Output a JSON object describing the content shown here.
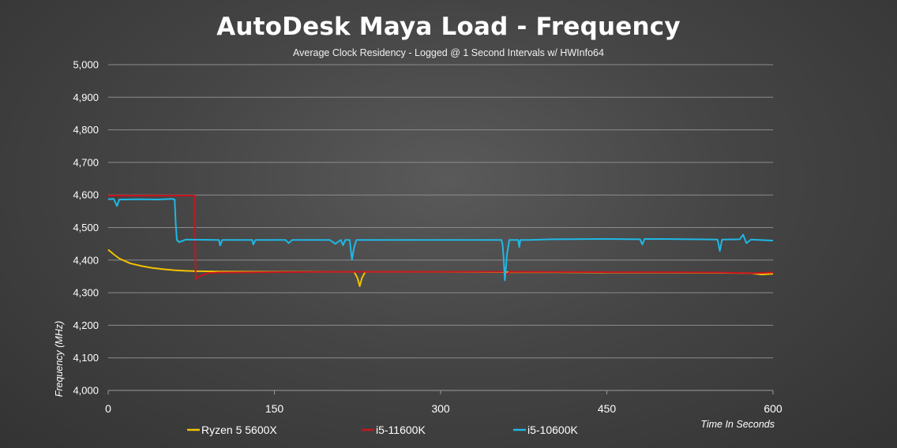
{
  "chart_data": {
    "type": "line",
    "title": "AutoDesk Maya Load - Frequency",
    "subtitle": "Average Clock Residency - Logged @ 1 Second Intervals w/ HWInfo64",
    "xlabel": "Time In Seconds",
    "ylabel": "Frequency (MHz)",
    "xlim": [
      0,
      600
    ],
    "ylim": [
      4000,
      5000
    ],
    "x_ticks": [
      0,
      150,
      300,
      450,
      600
    ],
    "x_tick_labels": [
      "0",
      "150",
      "300",
      "450",
      "600"
    ],
    "y_ticks": [
      4000,
      4100,
      4200,
      4300,
      4400,
      4500,
      4600,
      4700,
      4800,
      4900,
      5000
    ],
    "y_tick_labels": [
      "4,000",
      "4,100",
      "4,200",
      "4,300",
      "4,400",
      "4,500",
      "4,600",
      "4,700",
      "4,800",
      "4,900",
      "5,000"
    ],
    "grid": "horizontal",
    "legend_position": "bottom",
    "series": [
      {
        "name": "Ryzen 5 5600X",
        "color": "#f2c200",
        "points": [
          [
            0,
            4432
          ],
          [
            5,
            4418
          ],
          [
            10,
            4405
          ],
          [
            20,
            4390
          ],
          [
            30,
            4382
          ],
          [
            40,
            4376
          ],
          [
            50,
            4372
          ],
          [
            60,
            4369
          ],
          [
            70,
            4367
          ],
          [
            80,
            4366
          ],
          [
            100,
            4365
          ],
          [
            150,
            4364
          ],
          [
            200,
            4364
          ],
          [
            222,
            4364
          ],
          [
            225,
            4345
          ],
          [
            227,
            4320
          ],
          [
            229,
            4345
          ],
          [
            232,
            4364
          ],
          [
            300,
            4364
          ],
          [
            360,
            4363
          ],
          [
            400,
            4363
          ],
          [
            450,
            4362
          ],
          [
            500,
            4362
          ],
          [
            550,
            4361
          ],
          [
            580,
            4360
          ],
          [
            590,
            4356
          ],
          [
            600,
            4358
          ]
        ]
      },
      {
        "name": "i5-11600K",
        "color": "#c8141e",
        "points": [
          [
            0,
            4598
          ],
          [
            30,
            4598
          ],
          [
            60,
            4598
          ],
          [
            77,
            4598
          ],
          [
            78,
            4598
          ],
          [
            79,
            4342
          ],
          [
            83,
            4352
          ],
          [
            90,
            4360
          ],
          [
            100,
            4362
          ],
          [
            150,
            4363
          ],
          [
            200,
            4364
          ],
          [
            300,
            4364
          ],
          [
            358,
            4364
          ],
          [
            360,
            4356
          ],
          [
            362,
            4364
          ],
          [
            450,
            4363
          ],
          [
            500,
            4363
          ],
          [
            550,
            4362
          ],
          [
            580,
            4360
          ],
          [
            600,
            4362
          ]
        ]
      },
      {
        "name": "i5-10600K",
        "color": "#1fb8e6",
        "points": [
          [
            0,
            4587
          ],
          [
            5,
            4588
          ],
          [
            8,
            4566
          ],
          [
            10,
            4586
          ],
          [
            30,
            4587
          ],
          [
            45,
            4586
          ],
          [
            58,
            4588
          ],
          [
            60,
            4586
          ],
          [
            61,
            4510
          ],
          [
            62,
            4462
          ],
          [
            64,
            4455
          ],
          [
            70,
            4463
          ],
          [
            100,
            4462
          ],
          [
            101,
            4445
          ],
          [
            103,
            4462
          ],
          [
            130,
            4462
          ],
          [
            131,
            4448
          ],
          [
            133,
            4462
          ],
          [
            160,
            4462
          ],
          [
            163,
            4452
          ],
          [
            166,
            4462
          ],
          [
            200,
            4462
          ],
          [
            205,
            4450
          ],
          [
            210,
            4462
          ],
          [
            212,
            4446
          ],
          [
            214,
            4462
          ],
          [
            218,
            4462
          ],
          [
            219,
            4430
          ],
          [
            220,
            4402
          ],
          [
            222,
            4440
          ],
          [
            224,
            4462
          ],
          [
            260,
            4462
          ],
          [
            300,
            4462
          ],
          [
            350,
            4462
          ],
          [
            355,
            4462
          ],
          [
            356,
            4445
          ],
          [
            357,
            4400
          ],
          [
            358,
            4338
          ],
          [
            360,
            4420
          ],
          [
            362,
            4462
          ],
          [
            370,
            4462
          ],
          [
            371,
            4440
          ],
          [
            372,
            4462
          ],
          [
            380,
            4462
          ],
          [
            400,
            4464
          ],
          [
            450,
            4465
          ],
          [
            480,
            4464
          ],
          [
            482,
            4448
          ],
          [
            484,
            4465
          ],
          [
            500,
            4465
          ],
          [
            550,
            4463
          ],
          [
            552,
            4428
          ],
          [
            554,
            4463
          ],
          [
            570,
            4464
          ],
          [
            573,
            4478
          ],
          [
            576,
            4452
          ],
          [
            580,
            4463
          ],
          [
            600,
            4460
          ]
        ]
      }
    ]
  }
}
